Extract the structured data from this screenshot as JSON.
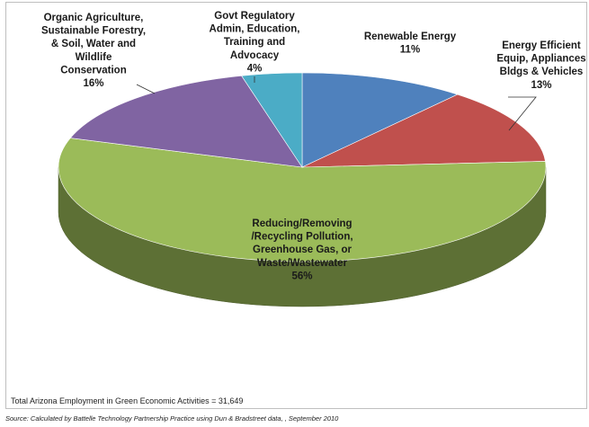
{
  "chart_data": {
    "type": "pie",
    "title": "",
    "three_d": true,
    "slices": [
      {
        "name": "Renewable Energy",
        "label_lines": [
          "Renewable Energy",
          "11%"
        ],
        "percent": 11,
        "color": "#4f81bd"
      },
      {
        "name": "Energy Efficient Equip, Appliances Bldgs & Vehicles",
        "label_lines": [
          "Energy Efficient",
          "Equip, Appliances",
          "Bldgs & Vehicles",
          "13%"
        ],
        "percent": 13,
        "color": "#c0504d"
      },
      {
        "name": "Reducing/Removing /Recycling Pollution, Greenhouse Gas, or Waste/Wastewater",
        "label_lines": [
          "Reducing/Removing",
          "/Recycling Pollution,",
          "Greenhouse Gas, or",
          "Waste/Wastewater",
          "56%"
        ],
        "percent": 56,
        "color": "#9bbb59"
      },
      {
        "name": "Organic Agriculture, Sustainable Forestry, & Soil, Water and Wildlife Conservation",
        "label_lines": [
          "Organic Agriculture,",
          "Sustainable Forestry,",
          "& Soil, Water and",
          "Wildlife",
          "Conservation",
          "16%"
        ],
        "percent": 16,
        "color": "#8064a2"
      },
      {
        "name": "Govt Regulatory Admin, Education, Training and Advocacy",
        "label_lines": [
          "Govt Regulatory",
          "Admin, Education,",
          "Training and",
          "Advocacy",
          "4%"
        ],
        "percent": 4,
        "color": "#4bacc6"
      }
    ],
    "legend": "none"
  },
  "footnote": "Total Arizona Employment in Green Economic Activities = 31,649",
  "source": "Source:  Calculated by Battelle Technology Partnership Practice using Dun & Bradstreet data, , September 2010"
}
